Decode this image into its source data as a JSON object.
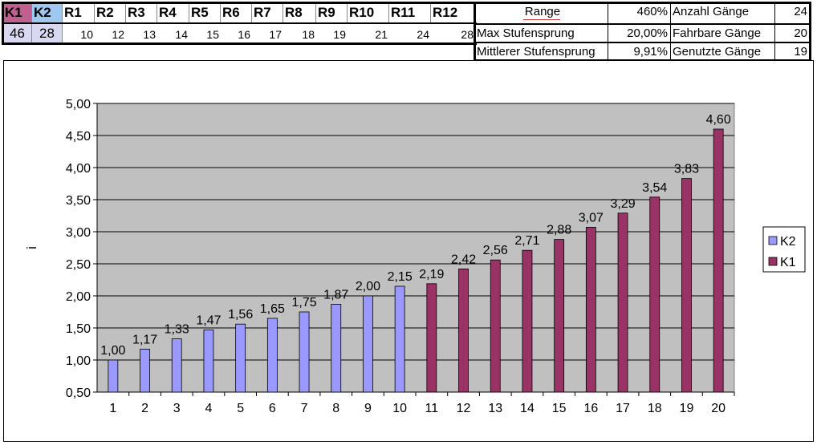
{
  "sheet": {
    "headers": [
      "K1",
      "K2",
      "R1",
      "R2",
      "R3",
      "R4",
      "R5",
      "R6",
      "R7",
      "R8",
      "R9",
      "R10",
      "R11",
      "R12"
    ],
    "k1_value": "46",
    "k2_value": "28",
    "r_values": [
      "10",
      "12",
      "13",
      "14",
      "15",
      "16",
      "17",
      "18",
      "19",
      "21",
      "24",
      "28"
    ],
    "stats": [
      {
        "label": "Range",
        "value": "460%",
        "label2": "Anzahl Gänge",
        "value2": "24"
      },
      {
        "label": "Max Stufensprung",
        "value": "20,00%",
        "label2": "Fahrbare Gänge",
        "value2": "20"
      },
      {
        "label": "Mittlerer Stufensprung",
        "value": "9,91%",
        "label2": "Genutzte Gänge",
        "value2": "19"
      }
    ],
    "colors": {
      "k1_header": "#c06090",
      "k2_header": "#9ec8f0",
      "value_bg": "#d8d8f0"
    }
  },
  "chart_data": {
    "type": "bar",
    "categories": [
      "1",
      "2",
      "3",
      "4",
      "5",
      "6",
      "7",
      "8",
      "9",
      "10",
      "11",
      "12",
      "13",
      "14",
      "15",
      "16",
      "17",
      "18",
      "19",
      "20"
    ],
    "series": [
      {
        "name": "K2",
        "color": "#9999ff",
        "values": [
          1.0,
          1.17,
          1.33,
          1.47,
          1.56,
          1.65,
          1.75,
          1.87,
          2.0,
          2.15,
          null,
          null,
          null,
          null,
          null,
          null,
          null,
          null,
          null,
          null
        ]
      },
      {
        "name": "K1",
        "color": "#993366",
        "values": [
          null,
          null,
          null,
          null,
          null,
          null,
          null,
          null,
          null,
          null,
          2.19,
          2.42,
          2.56,
          2.71,
          2.88,
          3.07,
          3.29,
          3.54,
          3.83,
          4.6
        ]
      }
    ],
    "data_labels": [
      "1,00",
      "1,17",
      "1,33",
      "1,47",
      "1,56",
      "1,65",
      "1,75",
      "1,87",
      "2,00",
      "2,15",
      "2,19",
      "2,42",
      "2,56",
      "2,71",
      "2,88",
      "3,07",
      "3,29",
      "3,54",
      "3,83",
      "4,60"
    ],
    "ytick_labels": [
      "0,50",
      "1,00",
      "1,50",
      "2,00",
      "2,50",
      "3,00",
      "3,50",
      "4,00",
      "4,50",
      "5,00"
    ],
    "ytick_values": [
      0.5,
      1.0,
      1.5,
      2.0,
      2.5,
      3.0,
      3.5,
      4.0,
      4.5,
      5.0
    ],
    "ylim": [
      0.5,
      5.0
    ],
    "ylabel": "i",
    "xlabel": "",
    "title": "",
    "legend": [
      "K2",
      "K1"
    ],
    "legend_position": "right",
    "grid": true,
    "plot_background": "#c0c0c0"
  }
}
